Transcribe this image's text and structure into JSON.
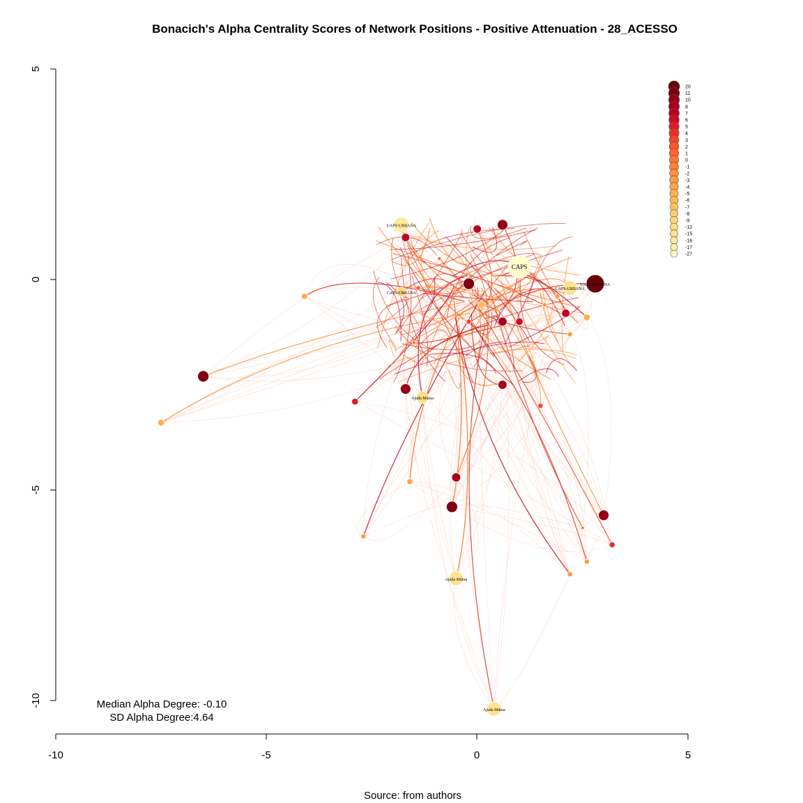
{
  "chart_data": {
    "type": "scatter",
    "title": "Bonacich's Alpha Centrality Scores of Network Positions - Positive Attenuation - 28_ACESSO",
    "caption": "Source: from authors",
    "xlim": [
      -10,
      5
    ],
    "ylim": [
      -10,
      5
    ],
    "x_ticks": [
      -10,
      -5,
      0,
      5
    ],
    "y_ticks": [
      5,
      0,
      -5,
      -10
    ],
    "x_tick_labels": [
      "-10",
      "-5",
      "0",
      "5"
    ],
    "y_tick_labels": [
      "5",
      "0",
      "-5",
      "-10"
    ],
    "annotations": [
      "Median Alpha Degree: -0.10",
      "SD Alpha Degree:4.64"
    ],
    "legend": {
      "placement": "top-right",
      "entries": [
        "20",
        "11",
        "10",
        "8",
        "7",
        "6",
        "5",
        "4",
        "3",
        "2",
        "1",
        "0",
        "-1",
        "-2",
        "-3",
        "-4",
        "-5",
        "-6",
        "-7",
        "-8",
        "-9",
        "-12",
        "-15",
        "-16",
        "-17",
        "-27"
      ],
      "colors": [
        "#67000d",
        "#7d0012",
        "#940018",
        "#a8001d",
        "#bd0026",
        "#cf0a28",
        "#df1b2a",
        "#e7302b",
        "#f0462c",
        "#f6552d",
        "#fb6530",
        "#fc7434",
        "#fc8339",
        "#fd913e",
        "#fd9c42",
        "#fea646",
        "#feb04b",
        "#feba55",
        "#fec45f",
        "#fecd6a",
        "#fed576",
        "#fedd83",
        "#fee490",
        "#ffeb9c",
        "#fff1a8",
        "#ffffcc"
      ]
    },
    "nodes": [
      {
        "x": 2.8,
        "y": -0.1,
        "score": 20,
        "label": "UAPS-URBANA"
      },
      {
        "x": 1.0,
        "y": 0.3,
        "score": -27,
        "label": "CAPS"
      },
      {
        "x": -1.8,
        "y": 1.3,
        "score": -16,
        "label": "UAPS-URBANA"
      },
      {
        "x": 2.2,
        "y": -0.2,
        "score": -15,
        "label": "CAPS-URBANA"
      },
      {
        "x": -0.5,
        "y": -7.1,
        "score": -15,
        "label": "Ajuda Mútua"
      },
      {
        "x": 0.4,
        "y": -10.2,
        "score": -15,
        "label": "Ajuda Mútua"
      },
      {
        "x": -1.3,
        "y": -2.8,
        "score": -12,
        "label": "Ajuda Mútua"
      },
      {
        "x": -1.8,
        "y": -0.3,
        "score": -9,
        "label": "CAPS-URBANA"
      },
      {
        "x": -6.5,
        "y": -2.3,
        "score": 11,
        "label": ""
      },
      {
        "x": -0.6,
        "y": -5.4,
        "score": 11,
        "label": ""
      },
      {
        "x": 0.6,
        "y": 1.3,
        "score": 10,
        "label": ""
      },
      {
        "x": -1.7,
        "y": -2.6,
        "score": 10,
        "label": ""
      },
      {
        "x": -0.2,
        "y": -0.1,
        "score": 11,
        "label": ""
      },
      {
        "x": 3.0,
        "y": -5.6,
        "score": 10,
        "label": ""
      },
      {
        "x": -0.5,
        "y": -4.7,
        "score": 8,
        "label": ""
      },
      {
        "x": 0.6,
        "y": -2.5,
        "score": 8,
        "label": ""
      },
      {
        "x": 0.6,
        "y": -1.0,
        "score": 8,
        "label": ""
      },
      {
        "x": 2.1,
        "y": -0.8,
        "score": 7,
        "label": ""
      },
      {
        "x": -1.7,
        "y": 1.0,
        "score": 7,
        "label": ""
      },
      {
        "x": 0.0,
        "y": 1.2,
        "score": 7,
        "label": ""
      },
      {
        "x": 1.0,
        "y": -1.0,
        "score": 6,
        "label": ""
      },
      {
        "x": -2.9,
        "y": -2.9,
        "score": 5,
        "label": ""
      },
      {
        "x": 3.2,
        "y": -6.3,
        "score": 4,
        "label": ""
      },
      {
        "x": -7.5,
        "y": -3.4,
        "score": -5,
        "label": ""
      },
      {
        "x": -1.6,
        "y": -4.8,
        "score": -4,
        "label": ""
      },
      {
        "x": 2.6,
        "y": -6.7,
        "score": -3,
        "label": ""
      },
      {
        "x": 2.2,
        "y": -7.0,
        "score": -3,
        "label": ""
      },
      {
        "x": 2.2,
        "y": -1.3,
        "score": -3,
        "label": ""
      },
      {
        "x": 1.6,
        "y": -0.6,
        "score": -2,
        "label": ""
      },
      {
        "x": 0.1,
        "y": -0.6,
        "score": -6,
        "label": ""
      },
      {
        "x": -4.1,
        "y": -0.4,
        "score": -4,
        "label": ""
      },
      {
        "x": -2.7,
        "y": -6.1,
        "score": -3,
        "label": ""
      },
      {
        "x": 2.5,
        "y": -5.9,
        "score": -1,
        "label": ""
      },
      {
        "x": 1.5,
        "y": -3.0,
        "score": 3,
        "label": ""
      },
      {
        "x": -1.4,
        "y": -0.2,
        "score": 2,
        "label": ""
      },
      {
        "x": -1.5,
        "y": -1.5,
        "score": 1,
        "label": ""
      },
      {
        "x": 2.6,
        "y": -0.9,
        "score": -5,
        "label": ""
      },
      {
        "x": -0.2,
        "y": -1.0,
        "score": 3,
        "label": ""
      },
      {
        "x": 1.9,
        "y": -0.4,
        "score": -3,
        "label": ""
      },
      {
        "x": -0.9,
        "y": 0.5,
        "score": 1,
        "label": ""
      }
    ]
  }
}
